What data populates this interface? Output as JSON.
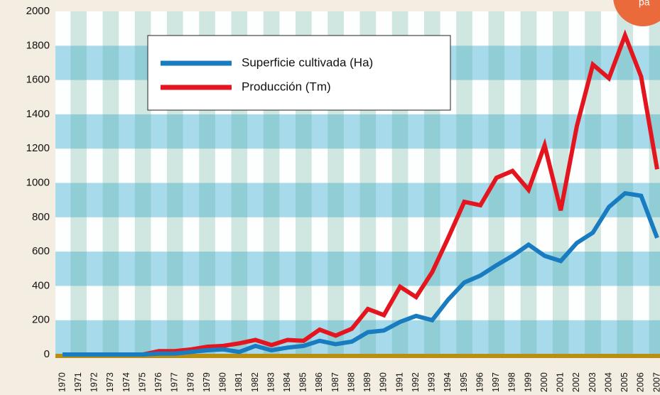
{
  "chart_data": {
    "type": "line",
    "badge": "pa",
    "categories": [
      "1970",
      "1971",
      "1972",
      "1973",
      "1974",
      "1975",
      "1976",
      "1977",
      "1978",
      "1979",
      "1980",
      "1981",
      "1982",
      "1983",
      "1984",
      "1985",
      "1986",
      "1987",
      "1988",
      "1989",
      "1990",
      "1991",
      "1992",
      "1993",
      "1994",
      "1995",
      "1996",
      "1997",
      "1998",
      "1999",
      "2000",
      "2001",
      "2002",
      "2003",
      "2004",
      "2005",
      "2006",
      "2007"
    ],
    "series": [
      {
        "name": "Superficie cultivada (Ha)",
        "color": "#1a7cc0",
        "values": [
          0,
          0,
          0,
          0,
          0,
          0,
          5,
          5,
          15,
          25,
          30,
          15,
          50,
          25,
          40,
          50,
          80,
          60,
          75,
          130,
          140,
          190,
          225,
          200,
          320,
          420,
          460,
          520,
          575,
          640,
          575,
          545,
          650,
          710,
          860,
          940,
          925,
          680
        ]
      },
      {
        "name": "Producción (Tm)",
        "color": "#e3161f",
        "values": [
          0,
          0,
          0,
          0,
          0,
          0,
          20,
          20,
          30,
          45,
          50,
          65,
          85,
          55,
          85,
          80,
          145,
          110,
          150,
          265,
          230,
          395,
          335,
          480,
          680,
          890,
          870,
          1030,
          1070,
          960,
          1220,
          840,
          1330,
          1690,
          1610,
          1860,
          1620,
          1080
        ]
      }
    ],
    "ylim": [
      0,
      2000
    ],
    "yticks": [
      0,
      200,
      400,
      600,
      800,
      1000,
      1200,
      1400,
      1600,
      1800,
      2000
    ],
    "legend": "upper-left"
  }
}
